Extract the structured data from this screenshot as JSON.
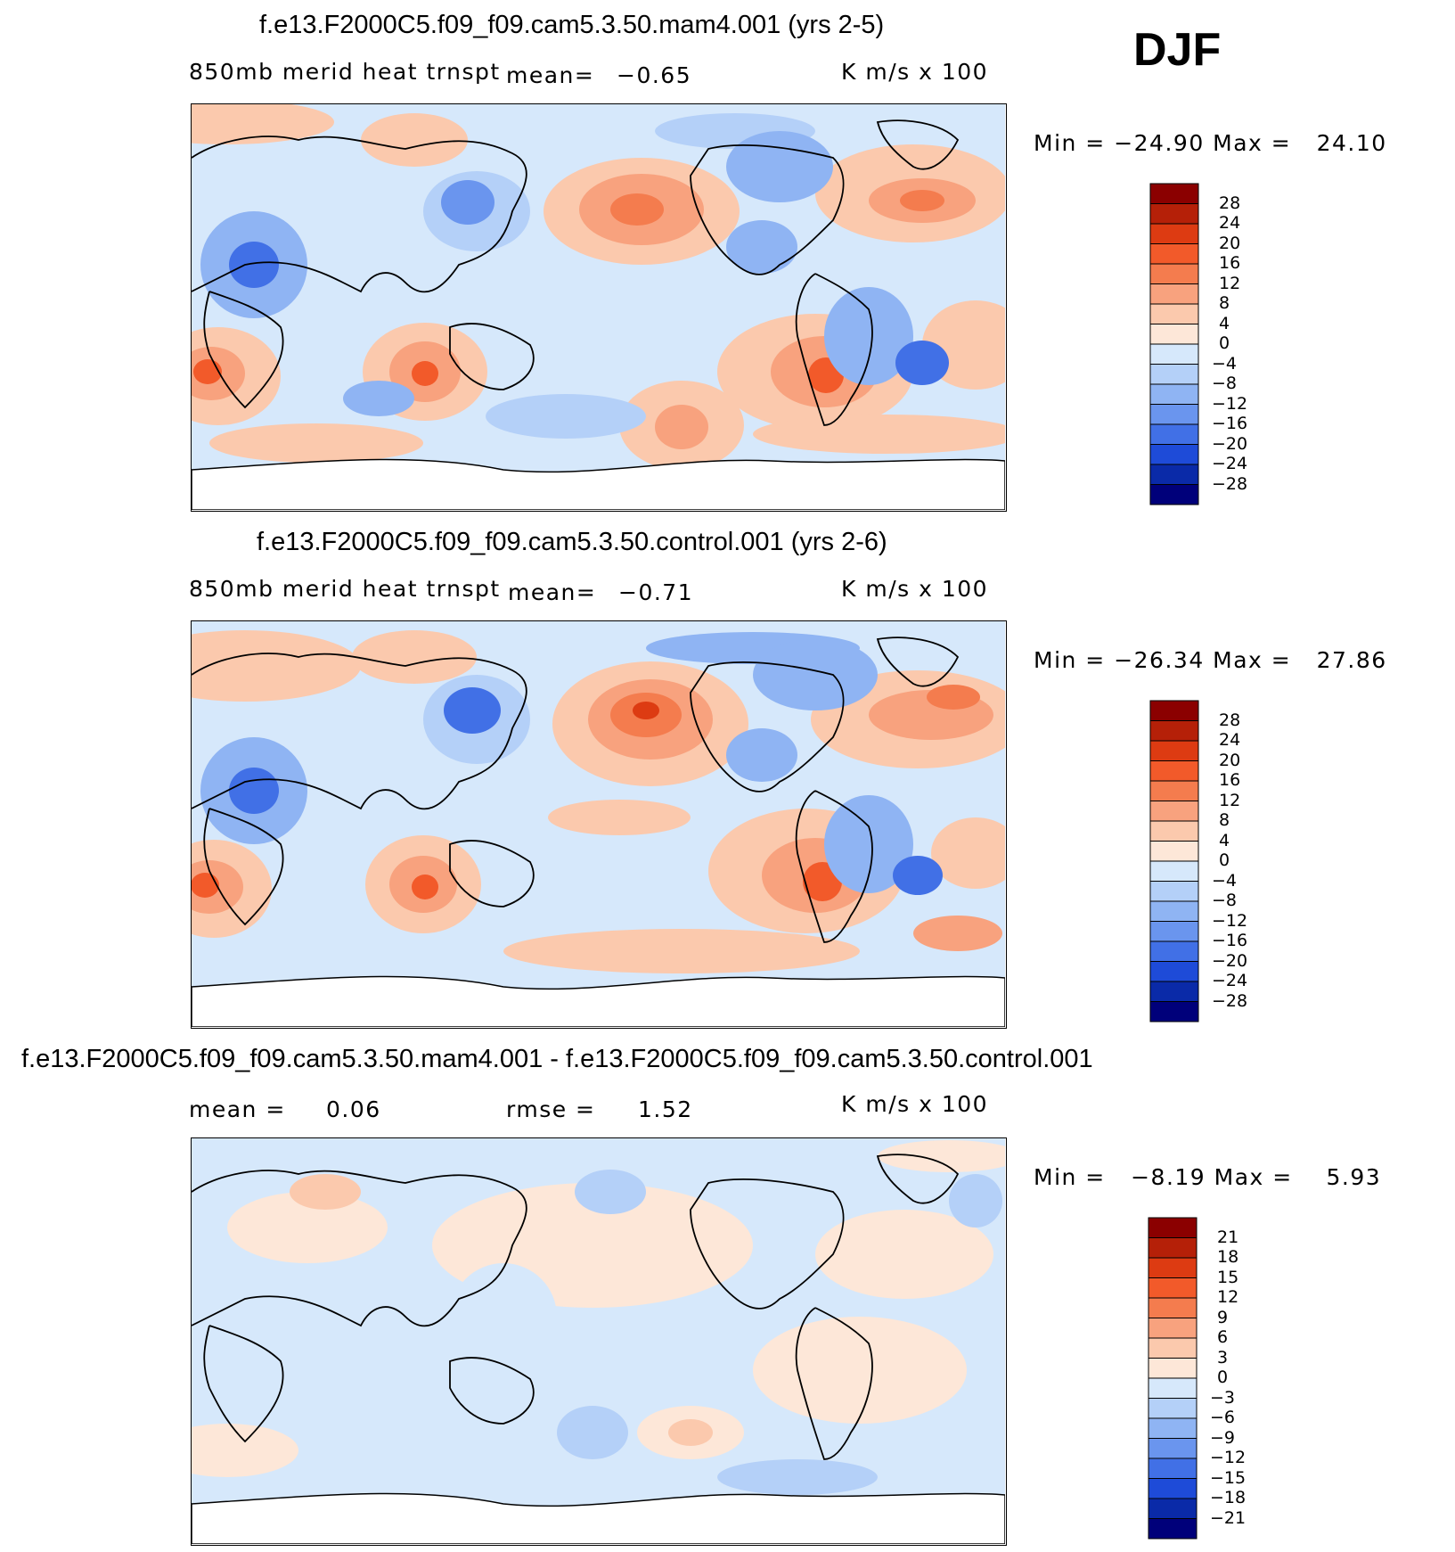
{
  "season": "DJF",
  "colors": {
    "ocean_base": "#d6e8fb",
    "land_blank": "#ffffff",
    "coast": "#000000"
  },
  "panels": [
    {
      "title": "f.e13.F2000C5.f09_f09.cam5.3.50.mam4.001 (yrs 2-5)",
      "variable": "850mb merid heat trnspt",
      "mean_label": "mean=",
      "mean_value": "−0.65",
      "units": "K m/s x 100",
      "minmax_text": "Min = −24.90 Max =   24.10"
    },
    {
      "title": "f.e13.F2000C5.f09_f09.cam5.3.50.control.001 (yrs 2-6)",
      "variable": "850mb merid heat trnspt",
      "mean_label": "mean=",
      "mean_value": "−0.71",
      "units": "K m/s x 100",
      "minmax_text": "Min = −26.34 Max =   27.86"
    },
    {
      "title": "f.e13.F2000C5.f09_f09.cam5.3.50.mam4.001 - f.e13.F2000C5.f09_f09.cam5.3.50.control.001",
      "mean_label": "mean =",
      "mean_value": "0.06",
      "rmse_label": "rmse =",
      "rmse_value": "1.52",
      "units": "K m/s x 100",
      "minmax_text": "Min =   −8.19 Max =    5.93"
    }
  ],
  "chart_data": [
    {
      "type": "heatmap",
      "title": "f.e13.F2000C5.f09_f09.cam5.3.50.mam4.001 (yrs 2-5)",
      "variable": "850mb merid heat trnspt",
      "units": "K m/s x 100",
      "mean": -0.65,
      "min": -24.9,
      "max": 24.1,
      "colorbar": {
        "levels": [
          "28",
          "24",
          "20",
          "16",
          "12",
          "8",
          "4",
          "0",
          "−4",
          "−8",
          "−12",
          "−16",
          "−20",
          "−24",
          "−28"
        ],
        "colors": [
          "#8b0000",
          "#b52008",
          "#dd3b12",
          "#f25a2a",
          "#f47c4e",
          "#f8a27e",
          "#fbc9ad",
          "#fde7d8",
          "#d6e8fb",
          "#b4d0f8",
          "#8fb4f3",
          "#6a95ee",
          "#4170e6",
          "#1e4bd8",
          "#0a2aa8",
          "#00007a"
        ]
      }
    },
    {
      "type": "heatmap",
      "title": "f.e13.F2000C5.f09_f09.cam5.3.50.control.001 (yrs 2-6)",
      "variable": "850mb merid heat trnspt",
      "units": "K m/s x 100",
      "mean": -0.71,
      "min": -26.34,
      "max": 27.86,
      "colorbar": {
        "levels": [
          "28",
          "24",
          "20",
          "16",
          "12",
          "8",
          "4",
          "0",
          "−4",
          "−8",
          "−12",
          "−16",
          "−20",
          "−24",
          "−28"
        ],
        "colors": [
          "#8b0000",
          "#b52008",
          "#dd3b12",
          "#f25a2a",
          "#f47c4e",
          "#f8a27e",
          "#fbc9ad",
          "#fde7d8",
          "#d6e8fb",
          "#b4d0f8",
          "#8fb4f3",
          "#6a95ee",
          "#4170e6",
          "#1e4bd8",
          "#0a2aa8",
          "#00007a"
        ]
      }
    },
    {
      "type": "heatmap",
      "title": "f.e13.F2000C5.f09_f09.cam5.3.50.mam4.001 - f.e13.F2000C5.f09_f09.cam5.3.50.control.001",
      "units": "K m/s x 100",
      "mean": 0.06,
      "rmse": 1.52,
      "min": -8.19,
      "max": 5.93,
      "colorbar": {
        "levels": [
          "21",
          "18",
          "15",
          "12",
          "9",
          "6",
          "3",
          "0",
          "−3",
          "−6",
          "−9",
          "−12",
          "−15",
          "−18",
          "−21"
        ],
        "colors": [
          "#8b0000",
          "#b52008",
          "#dd3b12",
          "#f25a2a",
          "#f47c4e",
          "#f8a27e",
          "#fbc9ad",
          "#fde7d8",
          "#d6e8fb",
          "#b4d0f8",
          "#8fb4f3",
          "#6a95ee",
          "#4170e6",
          "#1e4bd8",
          "#0a2aa8",
          "#00007a"
        ]
      }
    }
  ]
}
